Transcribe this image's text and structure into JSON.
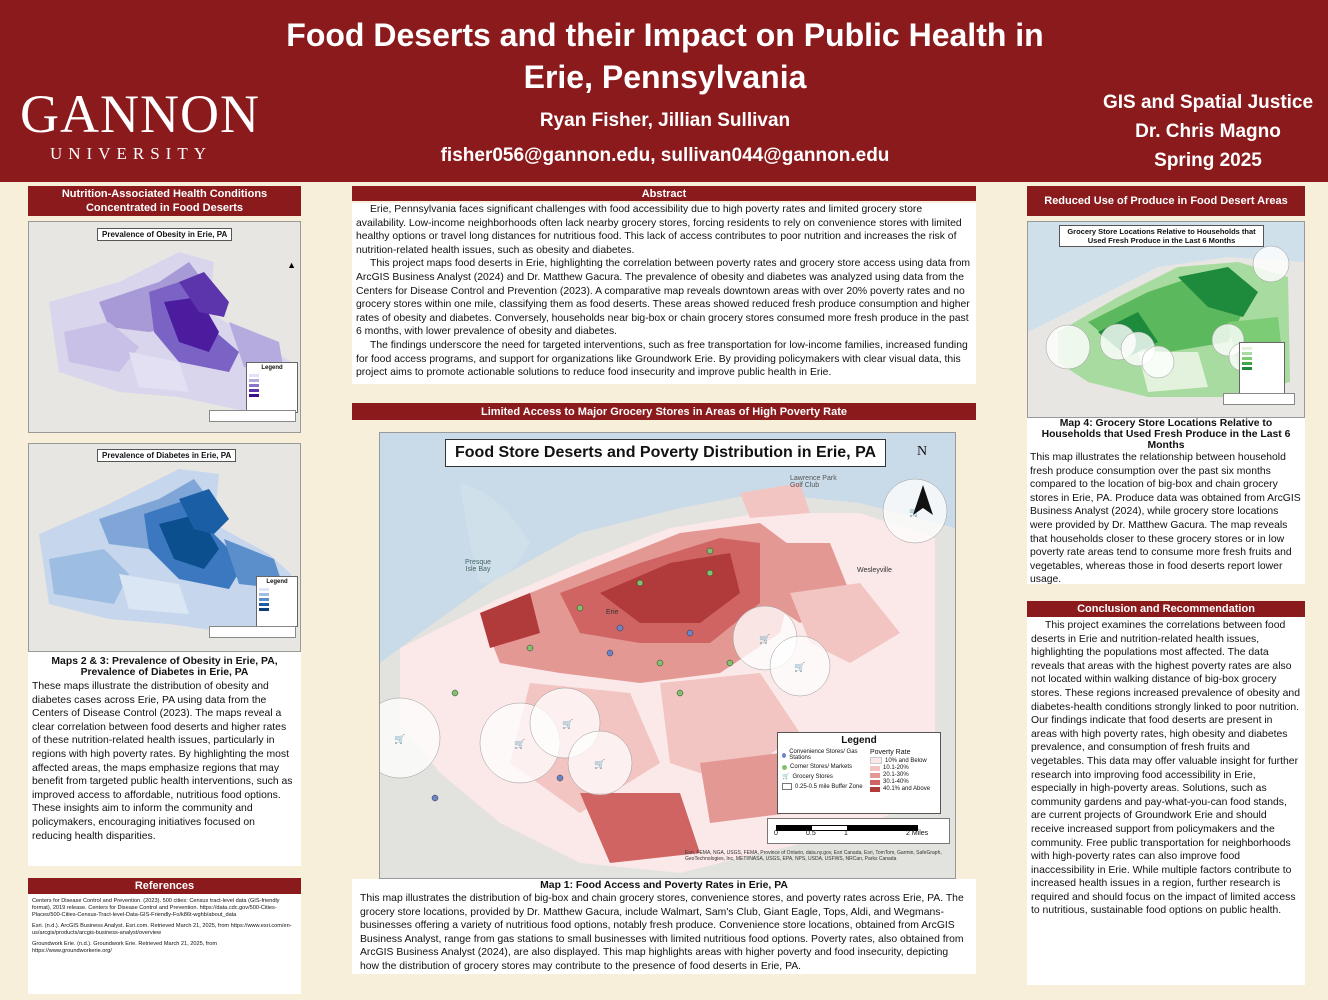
{
  "header": {
    "title": "Food Deserts and their Impact on Public Health in Erie, Pennsylvania",
    "authors": "Ryan Fisher, Jillian Sullivan",
    "emails": "fisher056@gannon.edu, sullivan044@gannon.edu",
    "course_line1": "GIS and Spatial Justice",
    "course_line2": "Dr. Chris Magno",
    "course_line3": "Spring 2025",
    "logo_main": "GANNON",
    "logo_sub": "UNIVERSITY"
  },
  "nutrition": {
    "heading": "Nutrition-Associated Health Conditions Concentrated in Food Deserts",
    "map2_title": "Prevalence of Obesity in Erie, PA",
    "map3_title": "Prevalence of Diabetes in Erie, PA",
    "legend_title": "Legend",
    "caption_line1": "Maps 2 & 3: Prevalence of Obesity in Erie, PA,",
    "caption_line2": "Prevalence of Diabetes in Erie, PA",
    "body": "These maps illustrate the distribution of obesity and diabetes cases across Erie, PA using data from the Centers of Disease Control (2023).  The maps reveal a clear correlation between food deserts and higher rates of these nutrition-related health issues, particularly in regions with high poverty rates. By highlighting the most affected areas, the maps emphasize regions that may benefit from targeted public health interventions, such as improved access to affordable, nutritious food options. These insights aim to inform the community and policymakers, encouraging initiatives focused on reducing health disparities."
  },
  "references": {
    "heading": "References",
    "items": [
      "Centers for Disease Control and Prevention. (2023). 500 cities: Census tract-level data (GIS-friendly format), 2019 release. Centers for Disease Control and Prevention. https://data.cdc.gov/500-Cities-Places/500-Cities-Census-Tract-level-Data-GIS-Friendly-Fo/k86t-wghb/about_data",
      "Esri. (n.d.). ArcGIS Business Analyst. Esri.com. Retrieved March 21, 2025, from https://www.esri.com/en-us/arcgis/products/arcgis-business-analyst/overview",
      "Groundwork Erie. (n.d.). Groundwork Erie. Retrieved March 21, 2025, from https://www.groundworkerie.org/"
    ]
  },
  "abstract": {
    "heading": "Abstract",
    "p1": "Erie, Pennsylvania faces significant challenges with food accessibility due to high poverty rates and limited grocery store availability. Low-income neighborhoods often lack nearby grocery stores, forcing residents to rely on convenience stores with limited healthy options or travel long distances for nutritious food.  This lack of access contributes to poor nutrition and increases the risk of nutrition-related health issues, such as obesity and diabetes.",
    "p2": "This project maps food deserts in Erie, highlighting the correlation between poverty rates and grocery store access using data from ArcGIS Business Analyst (2024) and Dr. Matthew Gacura. The prevalence of obesity and diabetes was analyzed using data from the Centers for Disease Control and Prevention (2023). A comparative map reveals downtown areas with over 20% poverty rates and no grocery stores within one mile, classifying them as food deserts. These areas showed reduced fresh produce consumption and higher rates of obesity and diabetes. Conversely, households near big-box or chain grocery stores consumed more fresh produce in the past 6 months, with lower prevalence of obesity and diabetes.",
    "p3": "The findings underscore the need for targeted interventions, such as free transportation for low-income families, increased funding for food access programs, and support for organizations like Groundwork Erie. By providing policymakers with clear visual data, this project aims to promote actionable solutions to reduce food insecurity and improve public health in Erie."
  },
  "main_map": {
    "heading": "Limited Access to Major Grocery Stores in Areas of High Poverty Rate",
    "title": "Food Store Deserts and Poverty Distribution in Erie, PA",
    "north": "N",
    "legend_title": "Legend",
    "legend_convenience": "Convenience Stores/ Gas Stations",
    "legend_corner": "Corner Stores/ Markets",
    "legend_grocery": "Grocery Stores",
    "legend_buffer": "0.25-0.5 mile Buffer Zone",
    "poverty_title": "Poverty Rate",
    "poverty_classes": [
      "10% and Below",
      "10.1-20%",
      "20.1-30%",
      "30.1-40%",
      "40.1% and Above"
    ],
    "poverty_colors": [
      "#fbe8e8",
      "#f2c4c2",
      "#e39894",
      "#cf6462",
      "#b13a3a"
    ],
    "scale_labels": [
      "0",
      "0.5",
      "1",
      "2 Miles"
    ],
    "place_labels": [
      "Presque Isle Bay",
      "Lawrence Park Golf Club",
      "Wesleyville",
      "Erie"
    ],
    "credits": "Esri, FEMA, NGA, USGS, FEMA, Province of Ontario, data.ny.gov, Esri Canada, Esri, TomTom, Garmin, SafeGraph, GeoTechnologies, Inc, METI/NASA, USGS, EPA, NPS, USDA, USFWS, NRCan, Parks Canada",
    "caption": "Map 1: Food Access and Poverty Rates in Erie, PA",
    "body": "This map illustrates the distribution of big-box and chain grocery stores, convenience stores, and poverty rates across Erie, PA. The grocery store locations, provided by Dr. Matthew Gacura, include Walmart, Sam's Club, Giant Eagle, Tops, Aldi, and Wegmans- businesses offering a variety of nutritious food options, notably fresh produce. Convenience store locations, obtained from ArcGIS Business Analyst, range from gas stations to small businesses with limited nutritious food options. Poverty rates, also obtained from ArcGIS Business Analyst (2024), are also displayed. This map highlights areas with higher poverty and food insecurity, depicting how the distribution of grocery stores may contribute to the presence of food deserts in Erie, PA."
  },
  "produce": {
    "heading": "Reduced Use of Produce in Food Desert Areas",
    "map_title": "Grocery Store Locations Relative to Households that Used Fresh Produce in the Last 6 Months",
    "caption": "Map 4: Grocery Store Locations Relative to Households that Used Fresh Produce in the Last 6 Months",
    "body": "This map illustrates the relationship between household fresh produce consumption over the past six months compared to the location of big-box and chain grocery stores in Erie, PA. Produce data was obtained from ArcGIS Business Analyst (2024), while grocery store locations were provided by Dr. Matthew Gacura. The map reveals that households closer to these grocery stores or in low poverty rate areas tend to consume more fresh fruits and vegetables, whereas those in food deserts report lower usage."
  },
  "conclusion": {
    "heading": "Conclusion and Recommendation",
    "body": "This project examines the correlations between food deserts in Erie and nutrition-related health issues, highlighting the populations most affected. The data reveals that areas with the highest poverty rates are also not located within walking distance of big-box grocery stores. These regions increased prevalence of obesity and diabetes-health conditions strongly linked to poor nutrition. Our findings indicate that food deserts are present in areas with high poverty rates, high obesity and diabetes prevalence, and consumption of fresh fruits and vegetables. This data may offer valuable insight for further research into improving food accessibility in Erie, especially in high-poverty areas. Solutions, such as community gardens and pay-what-you-can food stands, are current projects of Groundwork Erie and should receive increased support from policymakers and the community. Free public transportation for neighborhoods with high-poverty rates can also improve food inaccessibility in Erie. While multiple factors contribute to increased health issues in a region, further research is required and should focus on the impact of limited access to nutritious, sustainable food options on public health."
  },
  "colors": {
    "brand": "#8b1a1d",
    "background": "#f7efd9",
    "obesity": "#4b1d9e",
    "diabetes": "#0b4f8f",
    "produce": "#1e8a3c"
  }
}
